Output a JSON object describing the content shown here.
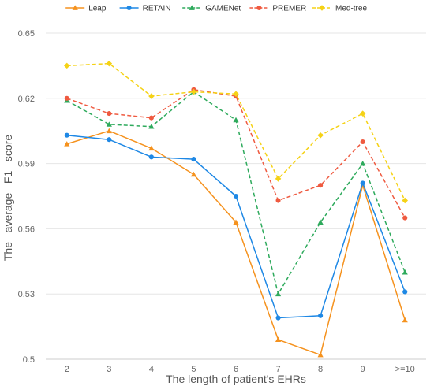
{
  "chart_data": {
    "type": "line",
    "title": "",
    "xlabel": "The length of patient's EHRs",
    "ylabel": "The   average   F1   score",
    "categories": [
      "2",
      "3",
      "4",
      "5",
      "6",
      "7",
      "8",
      "9",
      ">=10"
    ],
    "ylim": [
      0.5,
      0.65
    ],
    "yticks": [
      "0.5",
      "0.53",
      "0.56",
      "0.59",
      "0.62",
      "0.65"
    ],
    "grid": true,
    "legend_position": "top",
    "series": [
      {
        "name": "Leap",
        "color": "#F5921E",
        "marker": "triangle",
        "dashed": false,
        "values": [
          0.599,
          0.605,
          0.597,
          0.585,
          0.563,
          0.509,
          0.502,
          0.58,
          0.518
        ]
      },
      {
        "name": "RETAIN",
        "color": "#1E88E5",
        "marker": "circle",
        "dashed": false,
        "values": [
          0.603,
          0.601,
          0.593,
          0.592,
          0.575,
          0.519,
          0.52,
          0.581,
          0.531
        ]
      },
      {
        "name": "GAMENet",
        "color": "#2EAA5C",
        "marker": "triangle",
        "dashed": true,
        "values": [
          0.619,
          0.608,
          0.607,
          0.623,
          0.61,
          0.53,
          0.563,
          0.59,
          0.54
        ]
      },
      {
        "name": "PREMER",
        "color": "#EF5A40",
        "marker": "circle",
        "dashed": true,
        "values": [
          0.62,
          0.613,
          0.611,
          0.624,
          0.621,
          0.573,
          0.58,
          0.6,
          0.565
        ]
      },
      {
        "name": "Med-tree",
        "color": "#F5D216",
        "marker": "diamond",
        "dashed": true,
        "values": [
          0.635,
          0.636,
          0.621,
          0.623,
          0.622,
          0.583,
          0.603,
          0.613,
          0.573
        ]
      }
    ]
  }
}
